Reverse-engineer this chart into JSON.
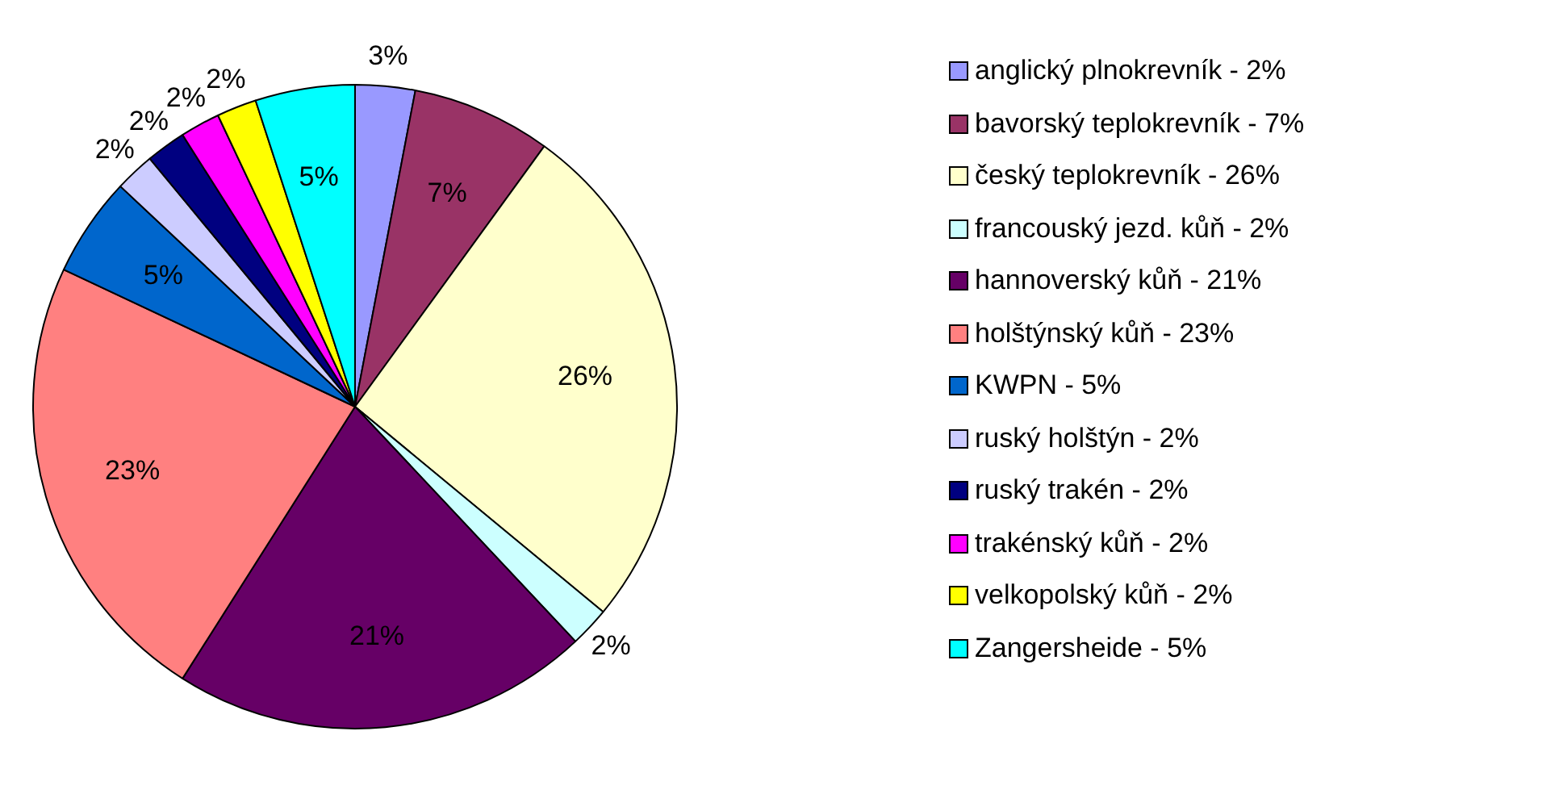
{
  "chart_data": {
    "type": "pie",
    "categories": [
      "anglický plnokrevník - 2%",
      "bavorský teplokrevník - 7%",
      "český teplokrevník - 26%",
      "francouský jezd. kůň - 2%",
      "hannoverský kůň - 21%",
      "holštýnský kůň - 23%",
      "KWPN - 5%",
      "ruský holštýn - 2%",
      "ruský trakén - 2%",
      "trakénský kůň - 2%",
      "velkopolský kůň - 2%",
      "Zangersheide - 5%"
    ],
    "values": [
      3,
      7,
      26,
      2,
      21,
      23,
      5,
      2,
      2,
      2,
      2,
      5
    ],
    "value_labels": [
      "3%",
      "7%",
      "26%",
      "2%",
      "21%",
      "23%",
      "5%",
      "2%",
      "2%",
      "2%",
      "2%",
      "5%"
    ],
    "colors": [
      "#9999ff",
      "#993366",
      "#ffffcc",
      "#ccffff",
      "#660066",
      "#ff8080",
      "#0066cc",
      "#ccccff",
      "#000080",
      "#ff00ff",
      "#ffff00",
      "#00ffff"
    ],
    "legend": "right"
  }
}
